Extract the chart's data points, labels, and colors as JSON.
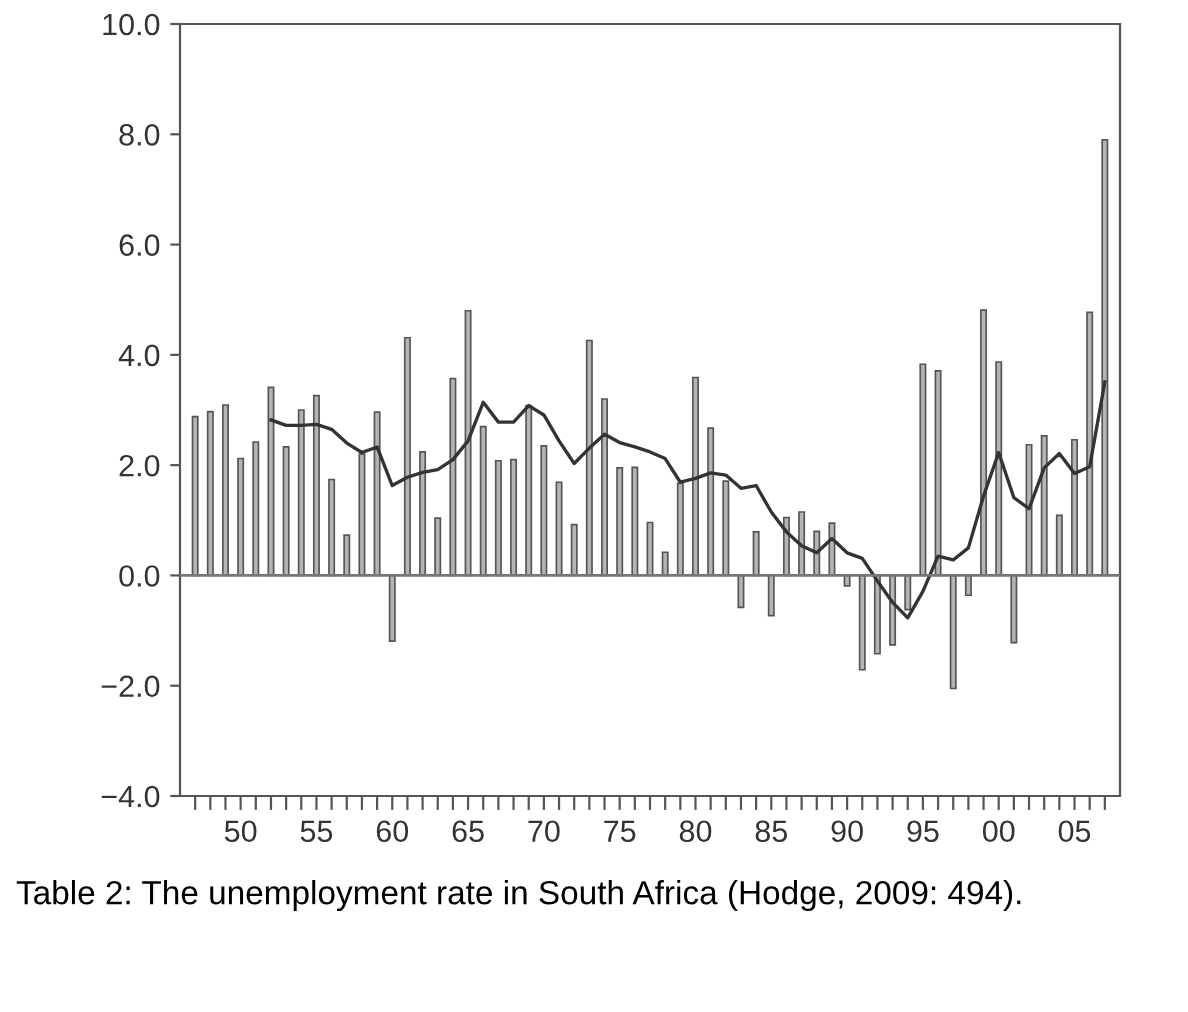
{
  "chart_data": {
    "type": "bar",
    "x": [
      1947,
      1948,
      1949,
      1950,
      1951,
      1952,
      1953,
      1954,
      1955,
      1956,
      1957,
      1958,
      1959,
      1960,
      1961,
      1962,
      1963,
      1964,
      1965,
      1966,
      1967,
      1968,
      1969,
      1970,
      1971,
      1972,
      1973,
      1974,
      1975,
      1976,
      1977,
      1978,
      1979,
      1980,
      1981,
      1982,
      1983,
      1984,
      1985,
      1986,
      1987,
      1988,
      1989,
      1990,
      1991,
      1992,
      1993,
      1994,
      1995,
      1996,
      1997,
      1998,
      1999,
      2000,
      2001,
      2002,
      2003,
      2004,
      2005,
      2006,
      2007
    ],
    "series": [
      {
        "color": "#b4b4b4",
        "values": [
          2.88,
          2.97,
          3.09,
          2.12,
          2.42,
          3.41,
          2.33,
          3.0,
          3.26,
          1.74,
          0.73,
          2.2,
          2.96,
          -1.19,
          4.31,
          2.24,
          1.04,
          3.57,
          4.8,
          2.7,
          2.08,
          2.1,
          3.08,
          2.35,
          1.69,
          0.92,
          4.26,
          3.2,
          1.95,
          1.96,
          0.96,
          0.42,
          1.67,
          3.59,
          2.67,
          1.71,
          -0.58,
          0.79,
          -0.73,
          1.05,
          1.15,
          0.8,
          0.95,
          -0.19,
          -1.71,
          -1.42,
          -1.26,
          -0.62,
          3.83,
          3.71,
          -2.05,
          -0.36,
          4.81,
          3.87,
          -1.22,
          2.37,
          2.53,
          1.09,
          2.46,
          4.77,
          7.9
        ]
      },
      {
        "type": "line",
        "color": "#333333",
        "values": [
          null,
          null,
          null,
          null,
          null,
          2.82,
          2.72,
          2.72,
          2.74,
          2.65,
          2.4,
          2.23,
          2.33,
          1.63,
          1.78,
          1.87,
          1.92,
          2.1,
          2.44,
          3.14,
          2.78,
          2.78,
          3.08,
          2.91,
          2.44,
          2.03,
          2.31,
          2.56,
          2.41,
          2.33,
          2.24,
          2.12,
          1.69,
          1.76,
          1.86,
          1.82,
          1.58,
          1.63,
          1.15,
          0.79,
          0.54,
          0.41,
          0.67,
          0.41,
          0.31,
          -0.1,
          -0.49,
          -0.77,
          -0.29,
          0.35,
          0.28,
          0.5,
          1.44,
          2.23,
          1.41,
          1.21,
          1.95,
          2.21,
          1.85,
          1.97,
          3.51
        ]
      }
    ],
    "xlim": [
      1946,
      2008
    ],
    "xticks": [
      {
        "value": 1947,
        "label": null
      },
      {
        "value": 1948,
        "label": null
      },
      {
        "value": 1949,
        "label": null
      },
      {
        "value": 1950,
        "label": "50"
      },
      {
        "value": 1951,
        "label": null
      },
      {
        "value": 1952,
        "label": null
      },
      {
        "value": 1953,
        "label": null
      },
      {
        "value": 1954,
        "label": null
      },
      {
        "value": 1955,
        "label": "55"
      },
      {
        "value": 1956,
        "label": null
      },
      {
        "value": 1957,
        "label": null
      },
      {
        "value": 1958,
        "label": null
      },
      {
        "value": 1959,
        "label": null
      },
      {
        "value": 1960,
        "label": "60"
      },
      {
        "value": 1961,
        "label": null
      },
      {
        "value": 1962,
        "label": null
      },
      {
        "value": 1963,
        "label": null
      },
      {
        "value": 1964,
        "label": null
      },
      {
        "value": 1965,
        "label": "65"
      },
      {
        "value": 1966,
        "label": null
      },
      {
        "value": 1967,
        "label": null
      },
      {
        "value": 1968,
        "label": null
      },
      {
        "value": 1969,
        "label": null
      },
      {
        "value": 1970,
        "label": "70"
      },
      {
        "value": 1971,
        "label": null
      },
      {
        "value": 1972,
        "label": null
      },
      {
        "value": 1973,
        "label": null
      },
      {
        "value": 1974,
        "label": null
      },
      {
        "value": 1975,
        "label": "75"
      },
      {
        "value": 1976,
        "label": null
      },
      {
        "value": 1977,
        "label": null
      },
      {
        "value": 1978,
        "label": null
      },
      {
        "value": 1979,
        "label": null
      },
      {
        "value": 1980,
        "label": "80"
      },
      {
        "value": 1981,
        "label": null
      },
      {
        "value": 1982,
        "label": null
      },
      {
        "value": 1983,
        "label": null
      },
      {
        "value": 1984,
        "label": null
      },
      {
        "value": 1985,
        "label": "85"
      },
      {
        "value": 1986,
        "label": null
      },
      {
        "value": 1987,
        "label": null
      },
      {
        "value": 1988,
        "label": null
      },
      {
        "value": 1989,
        "label": null
      },
      {
        "value": 1990,
        "label": "90"
      },
      {
        "value": 1991,
        "label": null
      },
      {
        "value": 1992,
        "label": null
      },
      {
        "value": 1993,
        "label": null
      },
      {
        "value": 1994,
        "label": null
      },
      {
        "value": 1995,
        "label": "95"
      },
      {
        "value": 1996,
        "label": null
      },
      {
        "value": 1997,
        "label": null
      },
      {
        "value": 1998,
        "label": null
      },
      {
        "value": 1999,
        "label": null
      },
      {
        "value": 2000,
        "label": "00"
      },
      {
        "value": 2001,
        "label": null
      },
      {
        "value": 2002,
        "label": null
      },
      {
        "value": 2003,
        "label": null
      },
      {
        "value": 2004,
        "label": null
      },
      {
        "value": 2005,
        "label": "05"
      },
      {
        "value": 2006,
        "label": null
      },
      {
        "value": 2007,
        "label": null
      }
    ],
    "ylim": [
      -4,
      10
    ],
    "yticks": [
      {
        "value": -4,
        "label": "−4.0"
      },
      {
        "value": -2,
        "label": "−2.0"
      },
      {
        "value": 0,
        "label": "0.0"
      },
      {
        "value": 2,
        "label": "2.0"
      },
      {
        "value": 4,
        "label": "4.0"
      },
      {
        "value": 6,
        "label": "6.0"
      },
      {
        "value": 8,
        "label": "8.0"
      },
      {
        "value": 10,
        "label": "10.0"
      }
    ],
    "ref_lines": [
      {
        "axis": "y",
        "value": 0,
        "color": "#777777"
      }
    ],
    "grid": false,
    "legend": false,
    "annotations": [
      "Table 2: The unemployment rate in South Africa (Hodge, 2009: 494)."
    ]
  }
}
